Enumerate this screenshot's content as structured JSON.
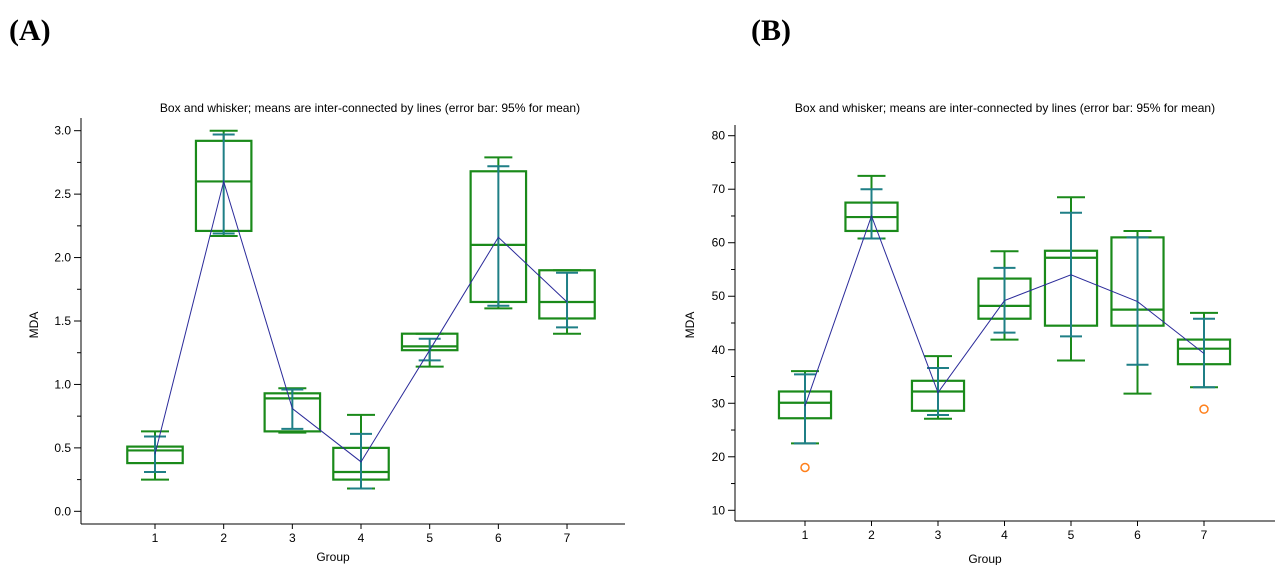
{
  "panels": [
    {
      "label": "(A)"
    },
    {
      "label": "(B)"
    }
  ],
  "colors": {
    "box": "#1a8a1a",
    "whisker": "#1f7f86",
    "mean_line": "#2b2b9a",
    "outlier": "#ff7f1a",
    "axis": "#000000"
  },
  "chart_data": [
    {
      "type": "box",
      "title": "Box and whisker; means are inter-connected by lines (error bar: 95% for mean)",
      "xlabel": "Group",
      "ylabel": "MDA",
      "categories": [
        "1",
        "2",
        "3",
        "4",
        "5",
        "6",
        "7"
      ],
      "ylim": [
        -0.1,
        3.1
      ],
      "yticks": [
        0.0,
        0.5,
        1.0,
        1.5,
        2.0,
        2.5,
        3.0
      ],
      "ytick_labels": [
        "0.0",
        "0.5",
        "1.0",
        "1.5",
        "2.0",
        "2.5",
        "3.0"
      ],
      "boxes": [
        {
          "min": 0.25,
          "q1": 0.38,
          "median": 0.48,
          "q3": 0.51,
          "max": 0.63,
          "mean": 0.45,
          "ci_low": 0.31,
          "ci_high": 0.59,
          "outliers": []
        },
        {
          "min": 2.17,
          "q1": 2.21,
          "median": 2.6,
          "q3": 2.92,
          "max": 3.0,
          "mean": 2.6,
          "ci_low": 2.19,
          "ci_high": 2.97,
          "outliers": []
        },
        {
          "min": 0.62,
          "q1": 0.63,
          "median": 0.89,
          "q3": 0.93,
          "max": 0.97,
          "mean": 0.81,
          "ci_low": 0.65,
          "ci_high": 0.96,
          "outliers": []
        },
        {
          "min": 0.18,
          "q1": 0.25,
          "median": 0.31,
          "q3": 0.5,
          "max": 0.76,
          "mean": 0.39,
          "ci_low": 0.18,
          "ci_high": 0.61,
          "outliers": []
        },
        {
          "min": 1.14,
          "q1": 1.27,
          "median": 1.3,
          "q3": 1.4,
          "max": 1.4,
          "mean": 1.27,
          "ci_low": 1.19,
          "ci_high": 1.36,
          "outliers": []
        },
        {
          "min": 1.6,
          "q1": 1.65,
          "median": 2.1,
          "q3": 2.68,
          "max": 2.79,
          "mean": 2.16,
          "ci_low": 1.62,
          "ci_high": 2.72,
          "outliers": []
        },
        {
          "min": 1.4,
          "q1": 1.52,
          "median": 1.65,
          "q3": 1.9,
          "max": 1.9,
          "mean": 1.65,
          "ci_low": 1.45,
          "ci_high": 1.88,
          "outliers": []
        }
      ]
    },
    {
      "type": "box",
      "title": "Box and whisker; means are inter-connected by lines (error bar: 95% for mean)",
      "xlabel": "Group",
      "ylabel": "MDA",
      "categories": [
        "1",
        "2",
        "3",
        "4",
        "5",
        "6",
        "7"
      ],
      "ylim": [
        8,
        82
      ],
      "yticks": [
        10,
        20,
        30,
        40,
        50,
        60,
        70,
        80
      ],
      "ytick_labels": [
        "10",
        "20",
        "30",
        "40",
        "50",
        "60",
        "70",
        "80"
      ],
      "boxes": [
        {
          "min": 22.5,
          "q1": 27.2,
          "median": 30.1,
          "q3": 32.2,
          "max": 36.0,
          "mean": 29.5,
          "ci_low": 22.5,
          "ci_high": 35.4,
          "outliers": [
            18.0
          ]
        },
        {
          "min": 60.8,
          "q1": 62.2,
          "median": 64.8,
          "q3": 67.5,
          "max": 72.5,
          "mean": 65.0,
          "ci_low": 60.8,
          "ci_high": 70.0,
          "outliers": []
        },
        {
          "min": 27.1,
          "q1": 28.6,
          "median": 32.2,
          "q3": 34.2,
          "max": 38.8,
          "mean": 32.0,
          "ci_low": 27.8,
          "ci_high": 36.6,
          "outliers": []
        },
        {
          "min": 41.9,
          "q1": 45.8,
          "median": 48.2,
          "q3": 53.3,
          "max": 58.4,
          "mean": 49.2,
          "ci_low": 43.2,
          "ci_high": 55.3,
          "outliers": []
        },
        {
          "min": 38.0,
          "q1": 44.5,
          "median": 57.2,
          "q3": 58.5,
          "max": 68.5,
          "mean": 54.0,
          "ci_low": 42.5,
          "ci_high": 65.6,
          "outliers": []
        },
        {
          "min": 31.8,
          "q1": 44.5,
          "median": 47.5,
          "q3": 61.0,
          "max": 62.2,
          "mean": 49.0,
          "ci_low": 37.2,
          "ci_high": 61.0,
          "outliers": []
        },
        {
          "min": 33.0,
          "q1": 37.3,
          "median": 40.2,
          "q3": 41.9,
          "max": 46.9,
          "mean": 39.3,
          "ci_low": 33.0,
          "ci_high": 45.8,
          "outliers": [
            28.9
          ]
        }
      ]
    }
  ]
}
